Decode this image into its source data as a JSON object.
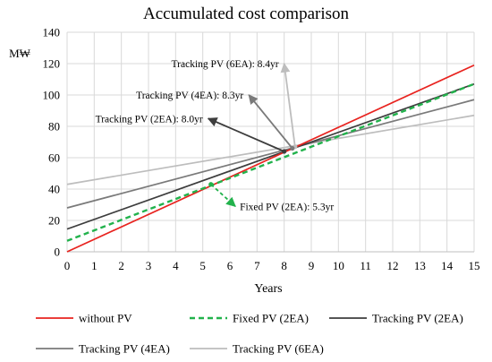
{
  "chart_data": {
    "type": "line",
    "title": "Accumulated cost comparison",
    "xlabel": "Years",
    "ylabel": "M₩",
    "xlim": [
      0,
      15
    ],
    "ylim": [
      0,
      140
    ],
    "x_ticks": [
      "0",
      "1",
      "2",
      "3",
      "4",
      "5",
      "6",
      "7",
      "8",
      "9",
      "10",
      "11",
      "12",
      "13",
      "14",
      "15"
    ],
    "y_ticks": [
      "0",
      "20",
      "40",
      "60",
      "80",
      "100",
      "120",
      "140"
    ],
    "grid": true,
    "legend_position": "bottom",
    "series": [
      {
        "name": "without PV",
        "color": "#e8231f",
        "dashed": false,
        "x": [
          0,
          15
        ],
        "y": [
          0,
          119
        ]
      },
      {
        "name": "Fixed PV (2EA)",
        "color": "#22b24c",
        "dashed": true,
        "x": [
          0,
          15
        ],
        "y": [
          7,
          107
        ]
      },
      {
        "name": "Tracking PV (2EA)",
        "color": "#3d3d3d",
        "dashed": false,
        "x": [
          0,
          15
        ],
        "y": [
          14.5,
          107
        ]
      },
      {
        "name": "Tracking PV (4EA)",
        "color": "#7a7a7a",
        "dashed": false,
        "x": [
          0,
          15
        ],
        "y": [
          28,
          97
        ]
      },
      {
        "name": "Tracking PV (6EA)",
        "color": "#bdbdbd",
        "dashed": false,
        "x": [
          0,
          15
        ],
        "y": [
          43,
          87
        ]
      }
    ],
    "annotations": [
      {
        "text": "Tracking PV (6EA): 8.4yr",
        "color": "#bdbdbd",
        "from": [
          8.4,
          67
        ],
        "to": [
          8.0,
          120
        ]
      },
      {
        "text": "Tracking PV (4EA): 8.3yr",
        "color": "#7a7a7a",
        "from": [
          8.3,
          66
        ],
        "to": [
          6.7,
          100
        ]
      },
      {
        "text": "Tracking PV (2EA): 8.0yr",
        "color": "#3d3d3d",
        "from": [
          8.0,
          64
        ],
        "to": [
          5.2,
          85
        ]
      },
      {
        "text": "Fixed PV (2EA): 5.3yr",
        "color": "#22b24c",
        "from": [
          5.3,
          43
        ],
        "to": [
          6.2,
          29
        ],
        "dashed": true
      }
    ]
  }
}
